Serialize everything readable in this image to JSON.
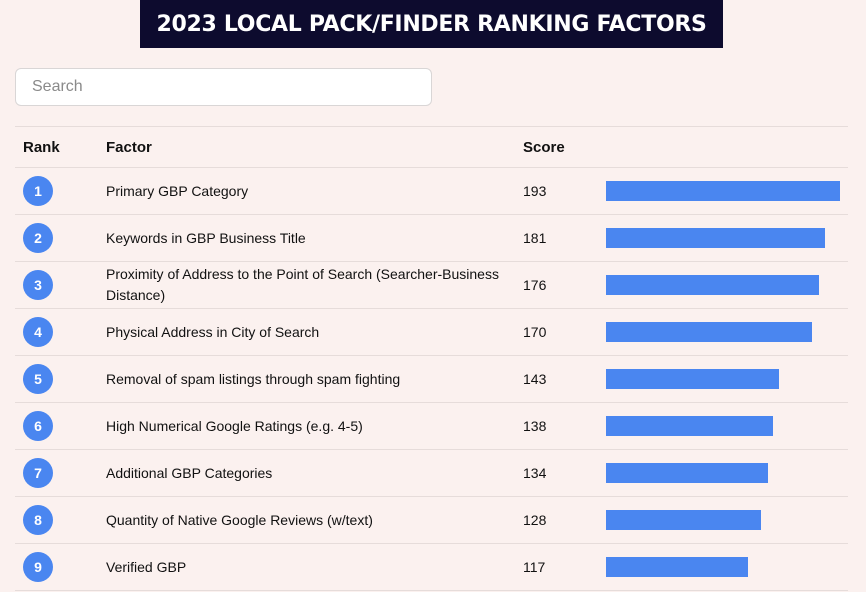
{
  "title": "2023 LOCAL PACK/FINDER RANKING FACTORS",
  "search": {
    "placeholder": "Search"
  },
  "columns": {
    "rank": "Rank",
    "factor": "Factor",
    "score": "Score"
  },
  "colors": {
    "bar": "#4a86f0",
    "badge": "#4a86f0",
    "title_bg": "#0d0b2e",
    "page_bg": "#fbf1ef"
  },
  "chart_data": {
    "type": "bar",
    "orientation": "horizontal",
    "categories": [
      "Primary GBP Category",
      "Keywords in GBP Business Title",
      "Proximity of Address to the Point of Search (Searcher-Business Distance)",
      "Physical Address in City of Search",
      "Removal of spam listings through spam fighting",
      "High Numerical Google Ratings (e.g. 4-5)",
      "Additional GBP Categories",
      "Quantity of Native Google Reviews (w/text)",
      "Verified GBP"
    ],
    "values": [
      193,
      181,
      176,
      170,
      143,
      138,
      134,
      128,
      117
    ],
    "title": "2023 LOCAL PACK/FINDER RANKING FACTORS",
    "xlim": [
      0,
      193
    ],
    "rows": [
      {
        "rank": "1",
        "factor": "Primary GBP Category",
        "score": "193",
        "value": 193
      },
      {
        "rank": "2",
        "factor": "Keywords in GBP Business Title",
        "score": "181",
        "value": 181
      },
      {
        "rank": "3",
        "factor": "Proximity of Address to the Point of Search (Searcher-Business Distance)",
        "score": "176",
        "value": 176
      },
      {
        "rank": "4",
        "factor": "Physical Address in City of Search",
        "score": "170",
        "value": 170
      },
      {
        "rank": "5",
        "factor": "Removal of spam listings through spam fighting",
        "score": "143",
        "value": 143
      },
      {
        "rank": "6",
        "factor": "High Numerical Google Ratings (e.g. 4-5)",
        "score": "138",
        "value": 138
      },
      {
        "rank": "7",
        "factor": "Additional GBP Categories",
        "score": "134",
        "value": 134
      },
      {
        "rank": "8",
        "factor": "Quantity of Native Google Reviews (w/text)",
        "score": "128",
        "value": 128
      },
      {
        "rank": "9",
        "factor": "Verified GBP",
        "score": "117",
        "value": 117
      }
    ]
  }
}
